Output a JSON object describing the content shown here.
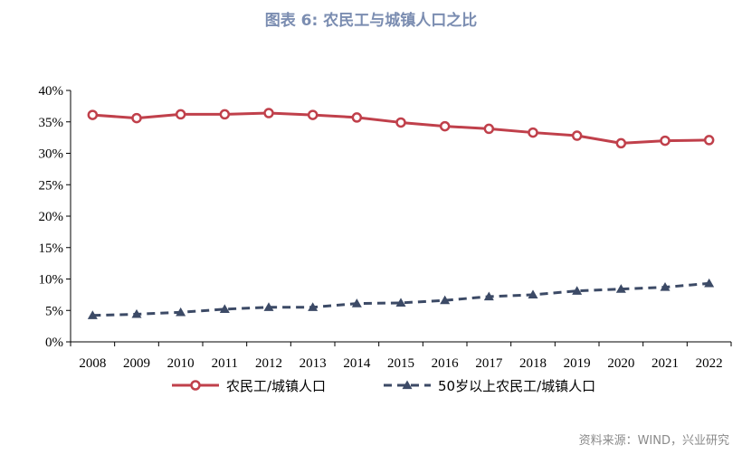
{
  "chart_title": "图表 6:  农民工与城镇人口之比",
  "source": "资料来源：WIND，兴业研究",
  "chart_data": {
    "type": "line",
    "title": "图表 6:  农民工与城镇人口之比",
    "x": [
      "2008",
      "2009",
      "2010",
      "2011",
      "2012",
      "2013",
      "2014",
      "2015",
      "2016",
      "2017",
      "2018",
      "2019",
      "2020",
      "2021",
      "2022"
    ],
    "y_ticks": [
      "40%",
      "35%",
      "30%",
      "25%",
      "20%",
      "15%",
      "10%",
      "5%",
      "0%"
    ],
    "ylim": [
      0,
      40
    ],
    "grid": false,
    "legend_position": "bottom",
    "series": [
      {
        "name": "农民工/城镇人口",
        "color": "#c0404b",
        "marker": "circle",
        "line_style": "solid",
        "values": [
          36.1,
          35.6,
          36.2,
          36.2,
          36.4,
          36.1,
          35.7,
          34.9,
          34.3,
          33.9,
          33.3,
          32.8,
          31.6,
          32.0,
          32.1
        ]
      },
      {
        "name": "50岁以上农民工/城镇人口",
        "color": "#3c4a66",
        "marker": "triangle",
        "line_style": "dashed",
        "values": [
          4.2,
          4.4,
          4.7,
          5.2,
          5.5,
          5.5,
          6.1,
          6.2,
          6.6,
          7.2,
          7.5,
          8.1,
          8.4,
          8.7,
          9.3
        ]
      }
    ]
  }
}
